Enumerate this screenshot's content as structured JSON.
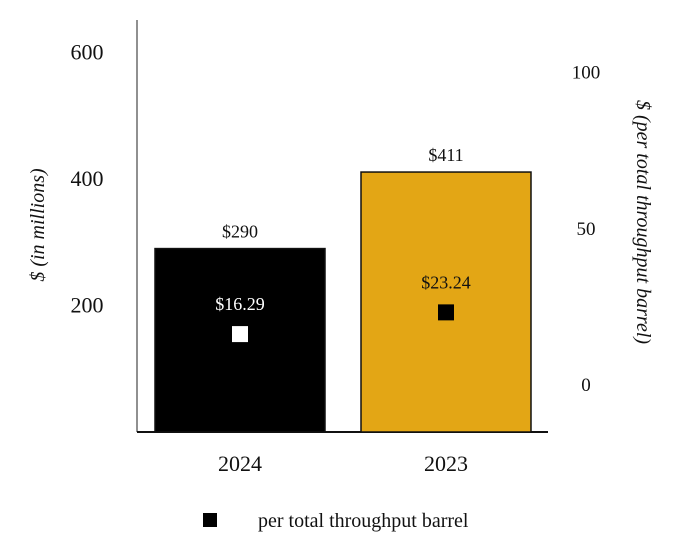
{
  "chart_data": {
    "type": "bar",
    "categories": [
      "2024",
      "2023"
    ],
    "series": [
      {
        "axis": "left",
        "values": [
          290,
          411
        ],
        "value_labels": [
          "$290",
          "$411"
        ],
        "colors": [
          "#000000",
          "#E3A615"
        ]
      },
      {
        "name": "per total throughput barrel",
        "axis": "right",
        "marker": "square",
        "values": [
          16.29,
          23.24
        ],
        "value_labels": [
          "$16.29",
          "$23.24"
        ],
        "marker_colors": [
          "#FFFFFF",
          "#000000"
        ],
        "label_colors": [
          "#FFFFFF",
          "#111111"
        ]
      }
    ],
    "y_left": {
      "label": "$ (in millions)",
      "ticks": [
        200,
        400,
        600
      ],
      "tick_labels": [
        "200",
        "400",
        "600"
      ]
    },
    "y_right": {
      "label": "$ (per total throughput barrel)",
      "ticks": [
        0,
        50,
        100
      ],
      "tick_labels": [
        "0",
        "50",
        "100"
      ]
    },
    "legend": {
      "position": "bottom-center",
      "marker_color": "#000000"
    },
    "grid": false
  }
}
